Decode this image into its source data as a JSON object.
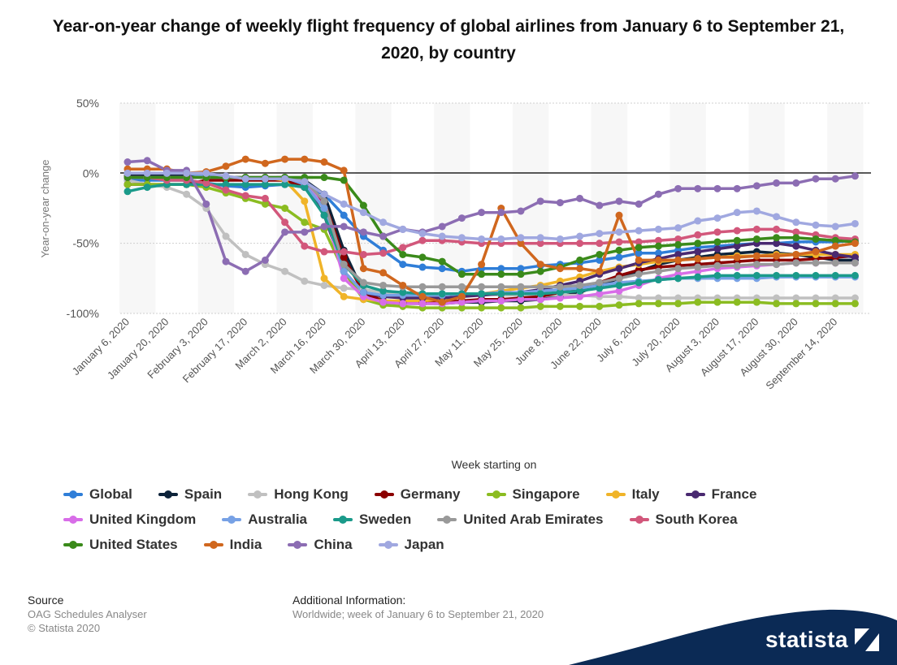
{
  "title": "Year-on-year change of weekly flight frequency of global airlines from January 6 to September 21, 2020, by country",
  "chart_data": {
    "type": "line",
    "title": "Year-on-year change of weekly flight frequency of global airlines from January 6 to September 21, 2020, by country",
    "xlabel": "Week starting on",
    "ylabel": "Year-on-year change",
    "ylim": [
      -100,
      50
    ],
    "yticks": [
      50,
      0,
      -50,
      -100
    ],
    "ytick_labels": [
      "50%",
      "0%",
      "-50%",
      "-100%"
    ],
    "xtick_labels": [
      "January 6, 2020",
      "January 20, 2020",
      "February 3, 2020",
      "February 17, 2020",
      "March 2, 2020",
      "March 16, 2020",
      "March 30, 2020",
      "April 13, 2020",
      "April 27, 2020",
      "May 11, 2020",
      "May 25, 2020",
      "June 8, 2020",
      "June 22, 2020",
      "July 6, 2020",
      "July 20, 2020",
      "August 3, 2020",
      "August 17, 2020",
      "August 30, 2020",
      "September 14, 2020"
    ],
    "x": [
      "January 6, 2020",
      "January 13, 2020",
      "January 20, 2020",
      "January 27, 2020",
      "February 3, 2020",
      "February 10, 2020",
      "February 17, 2020",
      "February 24, 2020",
      "March 2, 2020",
      "March 9, 2020",
      "March 16, 2020",
      "March 23, 2020",
      "March 30, 2020",
      "April 6, 2020",
      "April 13, 2020",
      "April 20, 2020",
      "April 27, 2020",
      "May 4, 2020",
      "May 11, 2020",
      "May 18, 2020",
      "May 25, 2020",
      "June 1, 2020",
      "June 8, 2020",
      "June 15, 2020",
      "June 22, 2020",
      "June 29, 2020",
      "July 6, 2020",
      "July 13, 2020",
      "July 20, 2020",
      "July 27, 2020",
      "August 3, 2020",
      "August 10, 2020",
      "August 17, 2020",
      "August 24, 2020",
      "August 30, 2020",
      "September 7, 2020",
      "September 14, 2020",
      "September 21, 2020"
    ],
    "grid": true,
    "legend_position": "bottom",
    "series": [
      {
        "name": "Global",
        "color": "#2f7ed8",
        "values": [
          -5,
          -5,
          -5,
          -5,
          -7,
          -9,
          -10,
          -9,
          -8,
          -10,
          -15,
          -30,
          -45,
          -55,
          -65,
          -67,
          -68,
          -70,
          -68,
          -68,
          -68,
          -66,
          -65,
          -64,
          -62,
          -60,
          -57,
          -57,
          -55,
          -53,
          -52,
          -51,
          -50,
          -50,
          -49,
          -49,
          -49,
          -48
        ]
      },
      {
        "name": "Spain",
        "color": "#0d233a",
        "values": [
          -2,
          -2,
          -2,
          -2,
          -2,
          -3,
          -3,
          -3,
          -3,
          -5,
          -15,
          -55,
          -85,
          -92,
          -93,
          -93,
          -93,
          -92,
          -92,
          -91,
          -91,
          -90,
          -88,
          -85,
          -80,
          -75,
          -70,
          -65,
          -62,
          -60,
          -58,
          -57,
          -56,
          -57,
          -58,
          -60,
          -62,
          -62
        ]
      },
      {
        "name": "Hong Kong",
        "color": "#c0c0c0",
        "values": [
          -5,
          -8,
          -10,
          -15,
          -25,
          -45,
          -58,
          -65,
          -70,
          -77,
          -80,
          -82,
          -83,
          -85,
          -85,
          -86,
          -86,
          -86,
          -86,
          -87,
          -87,
          -87,
          -87,
          -87,
          -88,
          -88,
          -89,
          -89,
          -89,
          -89,
          -89,
          -89,
          -89,
          -89,
          -89,
          -89,
          -89,
          -89
        ]
      },
      {
        "name": "Germany",
        "color": "#8b0000",
        "values": [
          -8,
          -8,
          -8,
          -8,
          -5,
          -5,
          -5,
          -5,
          -5,
          -10,
          -20,
          -60,
          -85,
          -91,
          -92,
          -92,
          -92,
          -91,
          -90,
          -90,
          -89,
          -88,
          -85,
          -82,
          -78,
          -73,
          -69,
          -67,
          -66,
          -65,
          -64,
          -63,
          -62,
          -62,
          -62,
          -61,
          -60,
          -59
        ]
      },
      {
        "name": "Singapore",
        "color": "#8bbc21",
        "values": [
          -8,
          -8,
          -8,
          -8,
          -10,
          -14,
          -18,
          -22,
          -25,
          -35,
          -40,
          -70,
          -90,
          -94,
          -95,
          -96,
          -96,
          -96,
          -96,
          -96,
          -96,
          -95,
          -95,
          -95,
          -95,
          -94,
          -93,
          -93,
          -93,
          -92,
          -92,
          -92,
          -92,
          -93,
          -93,
          -93,
          -93,
          -93
        ]
      },
      {
        "name": "Italy",
        "color": "#f0b429",
        "values": [
          -3,
          -3,
          -3,
          -3,
          -3,
          -3,
          -3,
          -3,
          -5,
          -20,
          -75,
          -88,
          -90,
          -91,
          -91,
          -91,
          -90,
          -88,
          -86,
          -84,
          -82,
          -80,
          -77,
          -74,
          -70,
          -67,
          -65,
          -63,
          -62,
          -61,
          -60,
          -59,
          -59,
          -58,
          -58,
          -58,
          -58,
          -58
        ]
      },
      {
        "name": "France",
        "color": "#492970",
        "values": [
          -3,
          -3,
          -3,
          -3,
          -3,
          -3,
          -3,
          -3,
          -3,
          -8,
          -30,
          -70,
          -85,
          -88,
          -89,
          -89,
          -89,
          -88,
          -87,
          -86,
          -85,
          -83,
          -80,
          -77,
          -72,
          -68,
          -64,
          -61,
          -58,
          -56,
          -54,
          -52,
          -50,
          -50,
          -52,
          -55,
          -58,
          -60
        ]
      },
      {
        "name": "United Kingdom",
        "color": "#d86de8",
        "values": [
          -3,
          -3,
          -3,
          -3,
          -3,
          -3,
          -3,
          -3,
          -3,
          -5,
          -25,
          -75,
          -88,
          -92,
          -93,
          -93,
          -93,
          -92,
          -91,
          -91,
          -90,
          -90,
          -89,
          -88,
          -86,
          -84,
          -80,
          -75,
          -72,
          -70,
          -68,
          -67,
          -66,
          -65,
          -64,
          -64,
          -64,
          -64
        ]
      },
      {
        "name": "Australia",
        "color": "#77a1e5",
        "values": [
          0,
          0,
          0,
          0,
          -2,
          -3,
          -3,
          -3,
          -3,
          -8,
          -25,
          -70,
          -85,
          -87,
          -87,
          -87,
          -87,
          -86,
          -86,
          -85,
          -85,
          -84,
          -83,
          -82,
          -80,
          -78,
          -77,
          -76,
          -75,
          -75,
          -75,
          -75,
          -75,
          -74,
          -74,
          -74,
          -74,
          -74
        ]
      },
      {
        "name": "Sweden",
        "color": "#1a9a8a",
        "values": [
          -13,
          -10,
          -8,
          -8,
          -8,
          -8,
          -8,
          -8,
          -8,
          -10,
          -30,
          -65,
          -80,
          -84,
          -85,
          -86,
          -86,
          -86,
          -86,
          -86,
          -86,
          -86,
          -85,
          -84,
          -82,
          -80,
          -78,
          -76,
          -75,
          -74,
          -73,
          -73,
          -73,
          -73,
          -73,
          -73,
          -73,
          -73
        ]
      },
      {
        "name": "United Arab Emirates",
        "color": "#999999",
        "values": [
          -3,
          -3,
          -3,
          -3,
          -3,
          -3,
          -3,
          -3,
          -3,
          -5,
          -20,
          -65,
          -78,
          -80,
          -81,
          -81,
          -81,
          -81,
          -81,
          -81,
          -81,
          -81,
          -81,
          -80,
          -78,
          -75,
          -72,
          -70,
          -68,
          -67,
          -66,
          -66,
          -65,
          -65,
          -64,
          -64,
          -64,
          -64
        ]
      },
      {
        "name": "South Korea",
        "color": "#d2577b",
        "values": [
          -3,
          -3,
          -5,
          -5,
          -7,
          -12,
          -16,
          -18,
          -35,
          -52,
          -56,
          -56,
          -58,
          -57,
          -53,
          -48,
          -48,
          -49,
          -50,
          -50,
          -50,
          -50,
          -50,
          -50,
          -50,
          -49,
          -49,
          -48,
          -47,
          -44,
          -42,
          -41,
          -40,
          -40,
          -42,
          -44,
          -46,
          -47
        ]
      },
      {
        "name": "United States",
        "color": "#3a8a1a",
        "values": [
          -3,
          -3,
          -3,
          -3,
          -3,
          -3,
          -3,
          -3,
          -3,
          -3,
          -3,
          -5,
          -23,
          -45,
          -58,
          -60,
          -63,
          -72,
          -72,
          -72,
          -72,
          -70,
          -67,
          -62,
          -58,
          -55,
          -53,
          -52,
          -51,
          -50,
          -49,
          -48,
          -47,
          -46,
          -46,
          -47,
          -48,
          -49
        ]
      },
      {
        "name": "India",
        "color": "#d0671e",
        "values": [
          3,
          3,
          3,
          0,
          1,
          5,
          10,
          7,
          10,
          10,
          8,
          2,
          -68,
          -71,
          -80,
          -88,
          -92,
          -88,
          -65,
          -25,
          -50,
          -65,
          -68,
          -68,
          -70,
          -30,
          -62,
          -62,
          -62,
          -61,
          -60,
          -60,
          -59,
          -59,
          -58,
          -56,
          -52,
          -50
        ]
      },
      {
        "name": "China",
        "color": "#8c6db3",
        "values": [
          8,
          9,
          2,
          2,
          -22,
          -63,
          -70,
          -62,
          -42,
          -42,
          -38,
          -38,
          -42,
          -45,
          -40,
          -42,
          -38,
          -32,
          -28,
          -28,
          -27,
          -20,
          -21,
          -18,
          -23,
          -20,
          -22,
          -15,
          -11,
          -11,
          -11,
          -11,
          -9,
          -7,
          -7,
          -4,
          -4,
          -2
        ]
      },
      {
        "name": "Japan",
        "color": "#a0a8e0",
        "values": [
          0,
          0,
          0,
          0,
          0,
          -2,
          -4,
          -4,
          -4,
          -6,
          -15,
          -22,
          -28,
          -35,
          -40,
          -43,
          -45,
          -46,
          -47,
          -47,
          -46,
          -46,
          -47,
          -45,
          -43,
          -42,
          -41,
          -40,
          -39,
          -34,
          -32,
          -28,
          -27,
          -31,
          -35,
          -37,
          -38,
          -36
        ]
      }
    ]
  },
  "footer": {
    "source_heading": "Source",
    "source_line1": "OAG Schedules Analyser",
    "source_line2": "© Statista 2020",
    "info_heading": "Additional Information:",
    "info_text": "Worldwide; week of January 6 to September 21, 2020",
    "brand": "statista"
  }
}
